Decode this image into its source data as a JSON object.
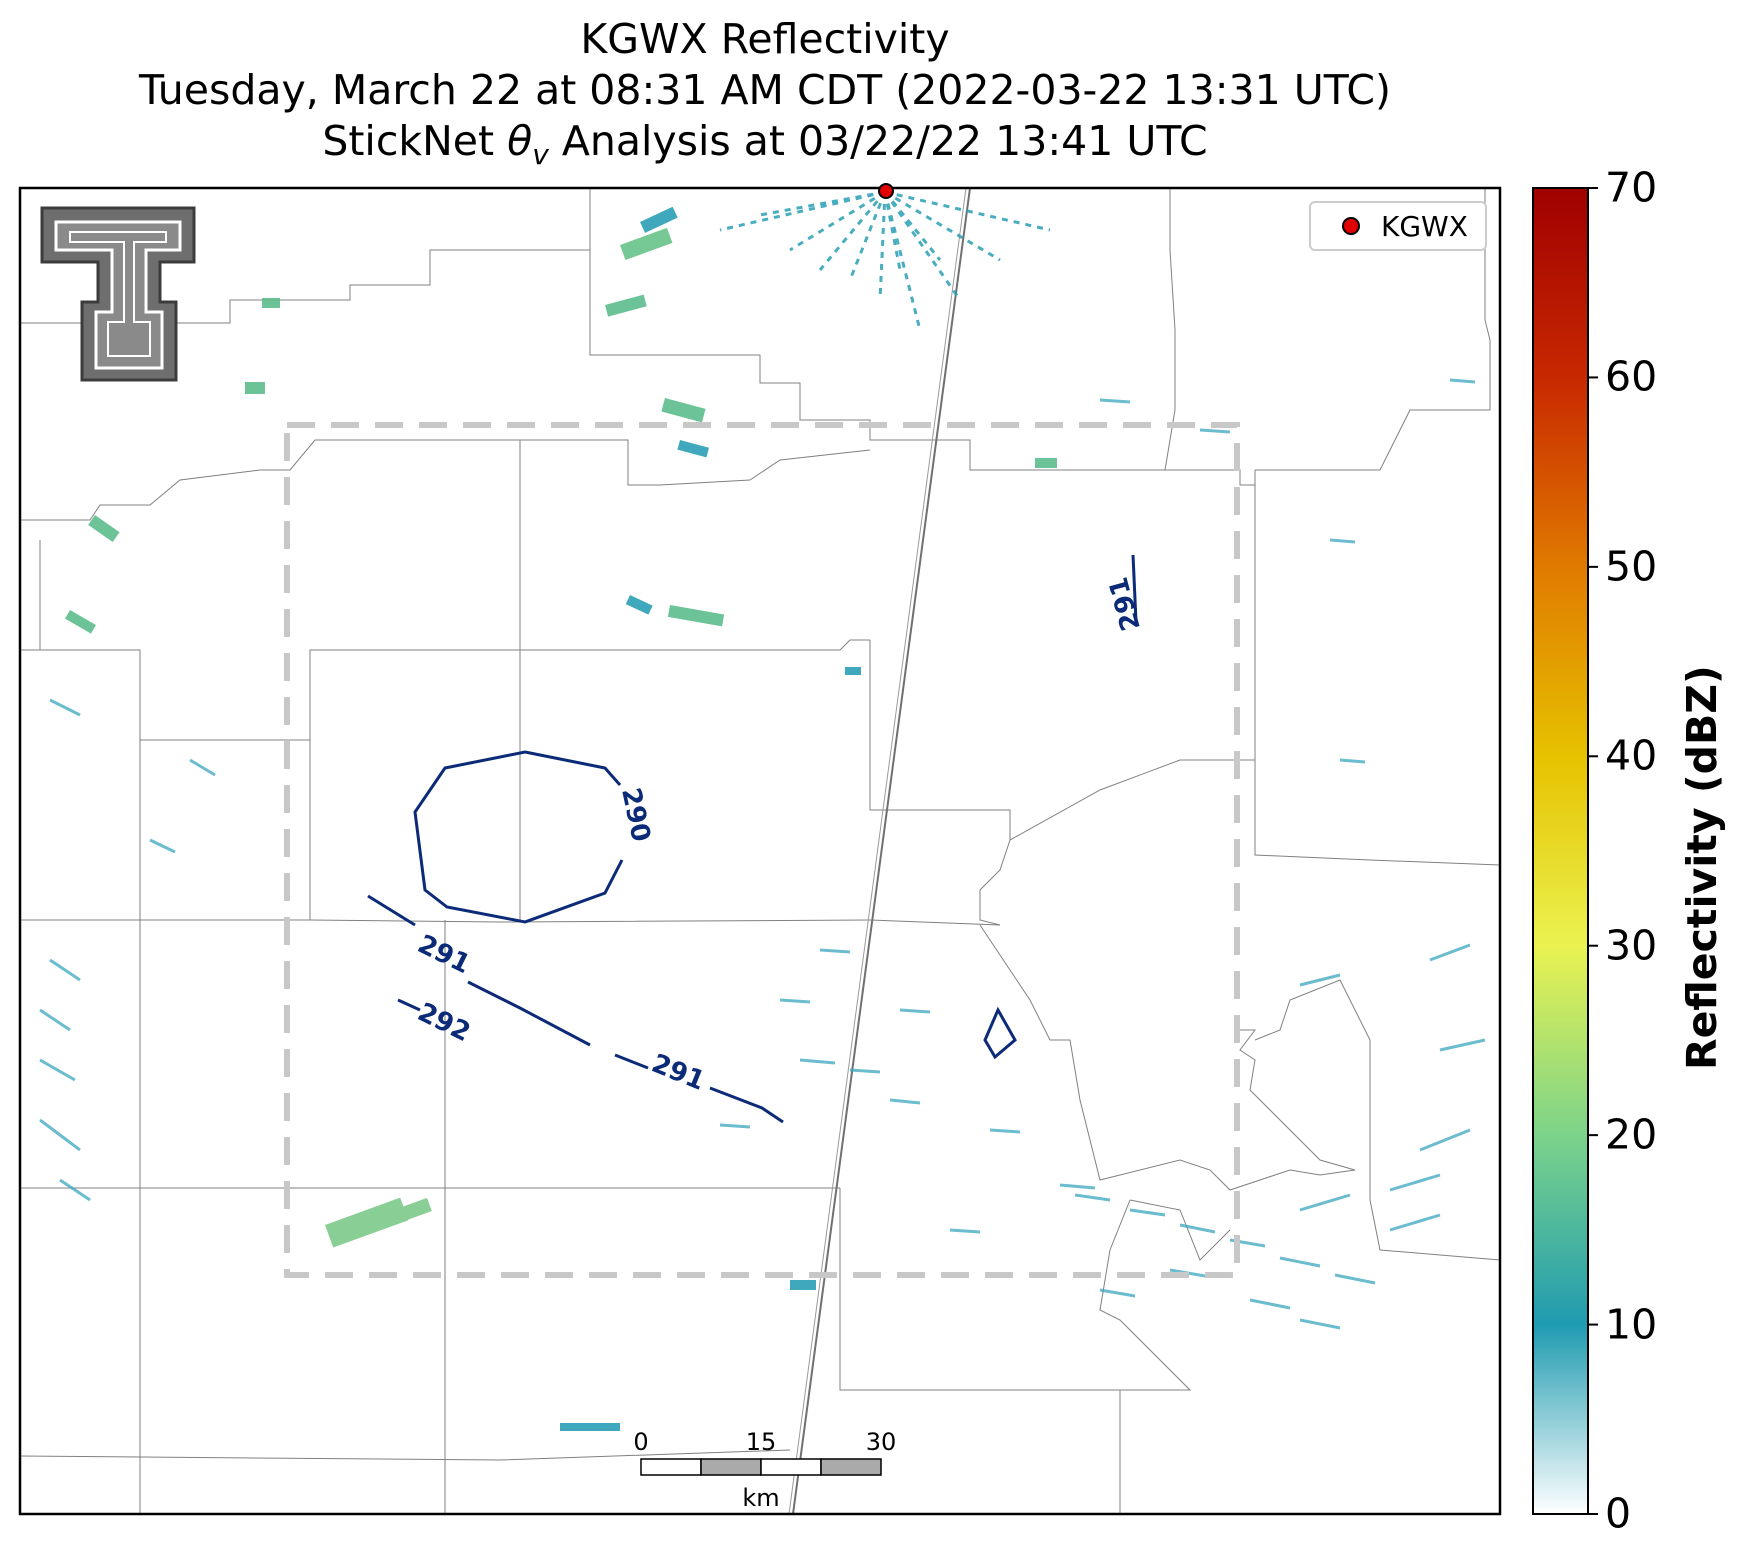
{
  "title": {
    "line1": "KGWX Reflectivity",
    "line2": "Tuesday, March 22 at 08:31 AM CDT (2022-03-22 13:31 UTC)",
    "line3_prefix": "StickNet ",
    "line3_symbol": "θ",
    "line3_sub": "v",
    "line3_suffix": " Analysis at 03/22/22 13:41 UTC"
  },
  "legend": {
    "radar_label": "KGWX",
    "marker_color": "#e00000"
  },
  "colorbar": {
    "label": "Reflectivity (dBZ)",
    "ticks": [
      "0",
      "10",
      "20",
      "30",
      "40",
      "50",
      "60",
      "70"
    ],
    "colors": [
      "#ffffff",
      "#1f9bb0",
      "#7cd38a",
      "#eaf250",
      "#e6c200",
      "#e07a00",
      "#c82800",
      "#a00000"
    ]
  },
  "scale_bar": {
    "ticks": [
      "0",
      "15",
      "30"
    ],
    "unit": "km"
  },
  "contours": [
    {
      "label": "290"
    },
    {
      "label": "291"
    },
    {
      "label": "292"
    },
    {
      "label": "291"
    },
    {
      "label": "291"
    }
  ]
}
